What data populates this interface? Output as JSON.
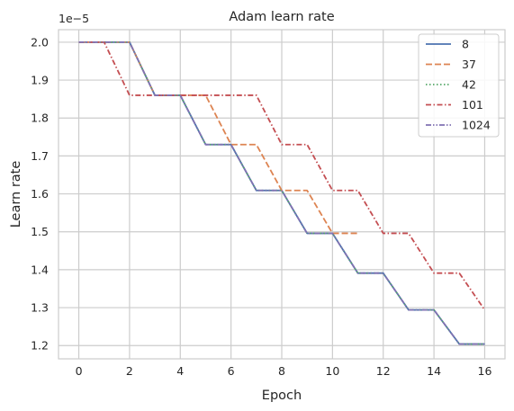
{
  "chart_data": {
    "type": "line",
    "title": "Adam learn rate",
    "xlabel": "Epoch",
    "ylabel": "Learn rate",
    "y_offset_label": "1e−5",
    "xlim": [
      -0.8,
      16.8
    ],
    "ylim": [
      1.165,
      2.033
    ],
    "x_ticks": [
      0,
      2,
      4,
      6,
      8,
      10,
      12,
      14,
      16
    ],
    "x_tick_labels": [
      "0",
      "2",
      "4",
      "6",
      "8",
      "10",
      "12",
      "14",
      "16"
    ],
    "y_ticks": [
      1.2,
      1.3,
      1.4,
      1.5,
      1.6,
      1.7,
      1.8,
      1.9,
      2.0
    ],
    "y_tick_labels": [
      "1.2",
      "1.3",
      "1.4",
      "1.5",
      "1.6",
      "1.7",
      "1.8",
      "1.9",
      "2.0"
    ],
    "grid": true,
    "legend_position": "top-right",
    "series": [
      {
        "name": "8",
        "color": "#4c72b0",
        "dash": "solid",
        "points": [
          [
            0,
            2.0
          ],
          [
            2,
            2.0
          ],
          [
            3,
            1.86
          ],
          [
            4,
            1.86
          ],
          [
            5,
            1.73
          ],
          [
            6,
            1.73
          ],
          [
            7,
            1.609
          ],
          [
            8,
            1.609
          ],
          [
            9,
            1.496
          ],
          [
            10,
            1.496
          ],
          [
            11,
            1.391
          ],
          [
            12,
            1.391
          ],
          [
            13,
            1.294
          ],
          [
            14,
            1.294
          ],
          [
            15,
            1.204
          ],
          [
            16,
            1.204
          ]
        ]
      },
      {
        "name": "37",
        "color": "#dd8452",
        "dash": "dashed",
        "points": [
          [
            0,
            2.0
          ],
          [
            2,
            2.0
          ],
          [
            3,
            1.86
          ],
          [
            5,
            1.86
          ],
          [
            6,
            1.73
          ],
          [
            7,
            1.73
          ],
          [
            8,
            1.609
          ],
          [
            9,
            1.609
          ],
          [
            10,
            1.496
          ],
          [
            11,
            1.496
          ]
        ]
      },
      {
        "name": "42",
        "color": "#55a868",
        "dash": "dotted",
        "points": [
          [
            0,
            2.0
          ],
          [
            2,
            2.0
          ],
          [
            3,
            1.86
          ],
          [
            4,
            1.86
          ],
          [
            5,
            1.73
          ],
          [
            6,
            1.73
          ],
          [
            7,
            1.609
          ],
          [
            8,
            1.609
          ],
          [
            9,
            1.496
          ],
          [
            10,
            1.496
          ],
          [
            11,
            1.391
          ],
          [
            12,
            1.391
          ],
          [
            13,
            1.294
          ],
          [
            14,
            1.294
          ],
          [
            15,
            1.204
          ],
          [
            16,
            1.204
          ]
        ]
      },
      {
        "name": "101",
        "color": "#c44e52",
        "dash": "dashdot",
        "points": [
          [
            0,
            2.0
          ],
          [
            1,
            2.0
          ],
          [
            2,
            1.86
          ],
          [
            7,
            1.86
          ],
          [
            8,
            1.73
          ],
          [
            9,
            1.73
          ],
          [
            10,
            1.609
          ],
          [
            11,
            1.609
          ],
          [
            12,
            1.496
          ],
          [
            13,
            1.496
          ],
          [
            14,
            1.391
          ],
          [
            15,
            1.391
          ],
          [
            16,
            1.294
          ]
        ]
      },
      {
        "name": "1024",
        "color": "#8172b3",
        "dash": "dashdotdot",
        "points": [
          [
            0,
            2.0
          ],
          [
            2,
            2.0
          ],
          [
            3,
            1.86
          ],
          [
            4,
            1.86
          ],
          [
            5,
            1.73
          ],
          [
            6,
            1.73
          ],
          [
            7,
            1.609
          ],
          [
            8,
            1.609
          ],
          [
            9,
            1.496
          ],
          [
            10,
            1.496
          ],
          [
            11,
            1.391
          ],
          [
            12,
            1.391
          ],
          [
            13,
            1.294
          ],
          [
            14,
            1.294
          ],
          [
            15,
            1.204
          ],
          [
            16,
            1.204
          ]
        ]
      }
    ]
  }
}
